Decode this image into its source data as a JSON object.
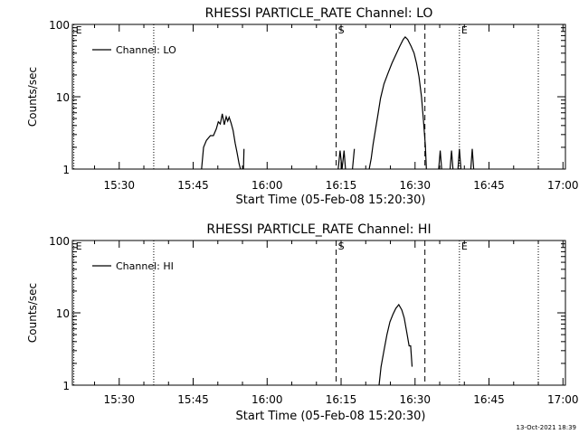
{
  "footer": {
    "timestamp": "13-Oct-2021 18:39"
  },
  "chart_data": [
    {
      "type": "line",
      "title": "RHESSI PARTICLE_RATE Channel: LO",
      "xlabel": "Start Time (05-Feb-08 15:20:30)",
      "ylabel": "Counts/sec",
      "x_unit": "minutes after 15:20:30",
      "xlim": [
        0,
        100
      ],
      "ylim": [
        1,
        100
      ],
      "yscale": "log",
      "x_ticks": [
        {
          "value": 9.5,
          "label": "15:30"
        },
        {
          "value": 24.5,
          "label": "15:45"
        },
        {
          "value": 39.5,
          "label": "16:00"
        },
        {
          "value": 54.5,
          "label": "16:15"
        },
        {
          "value": 69.5,
          "label": "16:30"
        },
        {
          "value": 84.5,
          "label": "16:45"
        },
        {
          "value": 99.5,
          "label": "17:00"
        }
      ],
      "y_ticks": [
        {
          "value": 1,
          "label": "1"
        },
        {
          "value": 10,
          "label": "10"
        },
        {
          "value": 100,
          "label": "100"
        }
      ],
      "legend": {
        "label": "Channel: LO",
        "position": "top-left"
      },
      "markers": [
        {
          "x": 0.3,
          "label": "E",
          "style": "dotted"
        },
        {
          "x": 16.5,
          "label": "",
          "style": "dotted"
        },
        {
          "x": 53.5,
          "label": "S",
          "style": "dashed"
        },
        {
          "x": 71.5,
          "label": "",
          "style": "dashed"
        },
        {
          "x": 78.5,
          "label": "E",
          "style": "dotted"
        },
        {
          "x": 94.5,
          "label": "",
          "style": "dotted"
        }
      ],
      "series": [
        {
          "segments": [
            [
              [
                26.2,
                1
              ],
              [
                26.6,
                2
              ],
              [
                27.2,
                2.5
              ],
              [
                28,
                2.9
              ],
              [
                28.6,
                2.9
              ],
              [
                29.2,
                3.6
              ],
              [
                29.6,
                4.5
              ],
              [
                30,
                4.2
              ],
              [
                30.4,
                5.8
              ],
              [
                30.8,
                4.1
              ],
              [
                31.2,
                5.3
              ],
              [
                31.5,
                4.6
              ],
              [
                31.8,
                5.2
              ],
              [
                32.2,
                4.3
              ],
              [
                32.6,
                3.4
              ],
              [
                33,
                2.3
              ],
              [
                33.4,
                1.7
              ],
              [
                33.8,
                1.2
              ],
              [
                34.1,
                1
              ]
            ],
            [
              [
                34.7,
                1
              ],
              [
                34.8,
                1.9
              ]
            ],
            [
              [
                53.9,
                1
              ],
              [
                54.3,
                1.8
              ],
              [
                54.7,
                1
              ],
              [
                55.1,
                1.8
              ],
              [
                55.4,
                1
              ]
            ],
            [
              [
                56.8,
                1
              ],
              [
                57.2,
                1.9
              ]
            ],
            [
              [
                60.2,
                1
              ],
              [
                60.6,
                1.4
              ],
              [
                61,
                2.2
              ],
              [
                61.5,
                3.6
              ],
              [
                62,
                5.8
              ],
              [
                62.5,
                9.5
              ],
              [
                63.2,
                15
              ],
              [
                64,
                21
              ],
              [
                64.8,
                29
              ],
              [
                65.6,
                38
              ],
              [
                66.4,
                50
              ],
              [
                67.1,
                62
              ],
              [
                67.5,
                67
              ],
              [
                68,
                62
              ],
              [
                68.7,
                50
              ],
              [
                69.3,
                40
              ],
              [
                69.8,
                29
              ],
              [
                70.3,
                19
              ],
              [
                70.8,
                10
              ],
              [
                71.2,
                4.8
              ],
              [
                71.6,
                2.1
              ],
              [
                71.8,
                1
              ]
            ],
            [
              [
                74.3,
                1
              ],
              [
                74.6,
                1.8
              ],
              [
                74.9,
                1
              ]
            ],
            [
              [
                76.6,
                1
              ],
              [
                76.9,
                1.8
              ],
              [
                77.2,
                1
              ]
            ],
            [
              [
                78.2,
                1
              ],
              [
                78.5,
                1.9
              ],
              [
                78.8,
                1
              ]
            ],
            [
              [
                80.8,
                1
              ],
              [
                81.1,
                1.9
              ],
              [
                81.4,
                1
              ]
            ]
          ]
        }
      ]
    },
    {
      "type": "line",
      "title": "RHESSI PARTICLE_RATE Channel: HI",
      "xlabel": "Start Time (05-Feb-08 15:20:30)",
      "ylabel": "Counts/sec",
      "x_unit": "minutes after 15:20:30",
      "xlim": [
        0,
        100
      ],
      "ylim": [
        1,
        100
      ],
      "yscale": "log",
      "x_ticks": [
        {
          "value": 9.5,
          "label": "15:30"
        },
        {
          "value": 24.5,
          "label": "15:45"
        },
        {
          "value": 39.5,
          "label": "16:00"
        },
        {
          "value": 54.5,
          "label": "16:15"
        },
        {
          "value": 69.5,
          "label": "16:30"
        },
        {
          "value": 84.5,
          "label": "16:45"
        },
        {
          "value": 99.5,
          "label": "17:00"
        }
      ],
      "y_ticks": [
        {
          "value": 1,
          "label": "1"
        },
        {
          "value": 10,
          "label": "10"
        },
        {
          "value": 100,
          "label": "100"
        }
      ],
      "legend": {
        "label": "Channel: HI",
        "position": "top-left"
      },
      "markers": [
        {
          "x": 0.3,
          "label": "E",
          "style": "dotted"
        },
        {
          "x": 16.5,
          "label": "",
          "style": "dotted"
        },
        {
          "x": 53.5,
          "label": "S",
          "style": "dashed"
        },
        {
          "x": 71.5,
          "label": "",
          "style": "dashed"
        },
        {
          "x": 78.5,
          "label": "E",
          "style": "dotted"
        },
        {
          "x": 94.5,
          "label": "",
          "style": "dotted"
        }
      ],
      "series": [
        {
          "segments": [
            [
              [
                62.2,
                1
              ],
              [
                62.6,
                1.8
              ],
              [
                63.2,
                3
              ],
              [
                63.8,
                5
              ],
              [
                64.4,
                7.5
              ],
              [
                65,
                9.5
              ],
              [
                65.6,
                11.5
              ],
              [
                66.2,
                13
              ],
              [
                66.8,
                11
              ],
              [
                67.3,
                8.5
              ],
              [
                67.8,
                5.5
              ],
              [
                68.3,
                3.5
              ],
              [
                68.6,
                3.5
              ],
              [
                68.9,
                1.8
              ]
            ]
          ]
        }
      ]
    }
  ]
}
